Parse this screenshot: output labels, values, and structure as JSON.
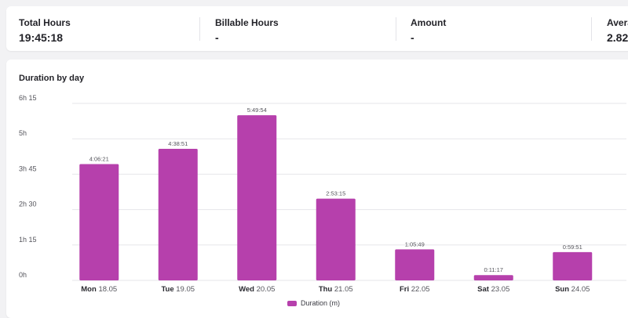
{
  "stats": [
    {
      "label": "Total Hours",
      "value": "19:45:18"
    },
    {
      "label": "Billable Hours",
      "value": "-"
    },
    {
      "label": "Amount",
      "value": "-"
    },
    {
      "label": "Avera",
      "value": "2.82"
    }
  ],
  "chart_card": {
    "title": "Duration by day"
  },
  "colors": {
    "bar": "#b640ac",
    "grid": "#e6e6ea",
    "axis_text": "#55555c"
  },
  "chart_data": {
    "type": "bar",
    "title": "Duration by day",
    "xlabel": "",
    "ylabel": "",
    "categories": [
      {
        "day": "Mon",
        "date": "18.05"
      },
      {
        "day": "Tue",
        "date": "19.05"
      },
      {
        "day": "Wed",
        "date": "20.05"
      },
      {
        "day": "Thu",
        "date": "21.05"
      },
      {
        "day": "Fri",
        "date": "22.05"
      },
      {
        "day": "Sat",
        "date": "23.05"
      },
      {
        "day": "Sun",
        "date": "24.05"
      }
    ],
    "series": [
      {
        "name": "Duration (m)",
        "values": [
          246.35,
          278.85,
          349.9,
          173.25,
          65.82,
          11.28,
          59.85
        ],
        "labels": [
          "4:06:21",
          "4:38:51",
          "5:49:54",
          "2:53:15",
          "1:05:49",
          "0:11:17",
          "0:59:51"
        ]
      }
    ],
    "y_ticks": [
      {
        "value": 0,
        "label": "0h"
      },
      {
        "value": 75,
        "label": "1h 15"
      },
      {
        "value": 150,
        "label": "2h 30"
      },
      {
        "value": 225,
        "label": "3h 45"
      },
      {
        "value": 300,
        "label": "5h"
      },
      {
        "value": 375,
        "label": "6h 15"
      }
    ],
    "ylim": [
      0,
      375
    ],
    "grid": true,
    "legend": "bottom-center"
  }
}
